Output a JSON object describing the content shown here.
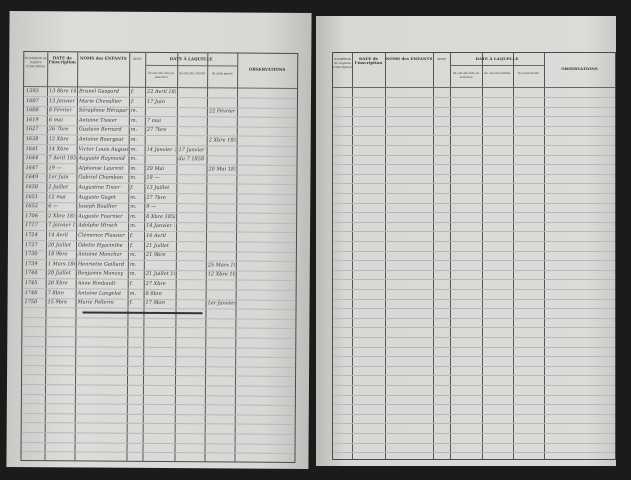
{
  "headers": {
    "number": "NUMÉROS du registre d'inscription",
    "date": "DATE de l'inscription",
    "names": "NOMS des ENFANTS",
    "sex": "SEXE",
    "date_group": "DATE À LAQUELLE",
    "placed": "ils ont été mis en nourrice",
    "withdrawn": "ils ont été retirés",
    "died": "ils sont morts",
    "observations": "OBSERVATIONS"
  },
  "rows": [
    [
      "1593",
      "13 8bre 1856",
      "Brunel Gaspard",
      "f.",
      "22 Avril 1857",
      "",
      "",
      ""
    ],
    [
      "1607",
      "13 Janvier 1857",
      "Marie Chevallier",
      "f.",
      "17 Juin",
      "",
      "",
      ""
    ],
    [
      "1608",
      "8 Février",
      "Séraphine Hérapart",
      "m.",
      "",
      "",
      "22 Février 1857",
      ""
    ],
    [
      "1619",
      "6 mai",
      "Antoine Tissier",
      "m.",
      "7 mai",
      "",
      "",
      ""
    ],
    [
      "1627",
      "26 7bre",
      "Gustave Bernard",
      "m.",
      "27 7bre",
      "",
      "",
      ""
    ],
    [
      "1638",
      "12 Xbre",
      "Antoine Bourgeat",
      "m.",
      "",
      "",
      "2 Xbre 1857",
      ""
    ],
    [
      "1641",
      "14 Xbre",
      "Victor Louis Augustin",
      "m.",
      "14 Janvier 1858",
      "17 Janvier 1858",
      "",
      ""
    ],
    [
      "1644",
      "7 Avril 1858",
      "Auguste Raymond",
      "m.",
      "",
      "du 7 1858",
      "",
      ""
    ],
    [
      "1647",
      "19 —",
      "Alphonse Laurent",
      "m.",
      "20 Mai",
      "",
      "20 Mai 1858",
      ""
    ],
    [
      "1649",
      "1er Juin",
      "Gabriel Chambon",
      "m.",
      "18 —",
      "",
      "",
      ""
    ],
    [
      "1650",
      "2 Juillet",
      "Augustine Tixier",
      "f.",
      "13 Juillet",
      "",
      "",
      ""
    ],
    [
      "1651",
      "12 mai",
      "Auguste Gaget",
      "m.",
      "27 7bre",
      "",
      "",
      ""
    ],
    [
      "1652",
      "6 —",
      "Joseph Boullier",
      "m.",
      "9 —",
      "",
      "",
      ""
    ],
    [
      "1706",
      "2 Xbre 1858",
      "Auguste Fournier",
      "m.",
      "8 Xbre 1858",
      "",
      "",
      ""
    ],
    [
      "1717",
      "7 Janvier 1860",
      "Adolphe Hirsch",
      "m.",
      "14 Janvier 1860",
      "",
      "",
      ""
    ],
    [
      "1724",
      "14 Avril",
      "Clémence Plassier",
      "f.",
      "16 Avril",
      "",
      "",
      ""
    ],
    [
      "1727",
      "20 Juillet",
      "Odette Hyacinthe",
      "f.",
      "21 Juillet",
      "",
      "",
      ""
    ],
    [
      "1730",
      "18 9bre",
      "Antoine Moncher",
      "m.",
      "21 9bre",
      "",
      "",
      ""
    ],
    [
      "1739",
      "1 Mars 1861",
      "Henriette Gaillard",
      "m.",
      "",
      "",
      "25 Mars 1861",
      ""
    ],
    [
      "1744",
      "20 Juillet",
      "Benjamin Moncey",
      "m.",
      "21 Juillet 1861",
      "",
      "12 Xbre 1861",
      ""
    ],
    [
      "1745",
      "20 Xbre",
      "Anne Rimbault",
      "f.",
      "27 Xbre",
      "",
      "",
      ""
    ],
    [
      "1748",
      "7 8bre",
      "Antoine Langelot",
      "m.",
      "8 8bre",
      "",
      "",
      ""
    ],
    [
      "1750",
      "15 9bre",
      "Marie Pellerin",
      "f.",
      "17 9bre",
      "",
      "1er Janvier 1862",
      ""
    ]
  ]
}
